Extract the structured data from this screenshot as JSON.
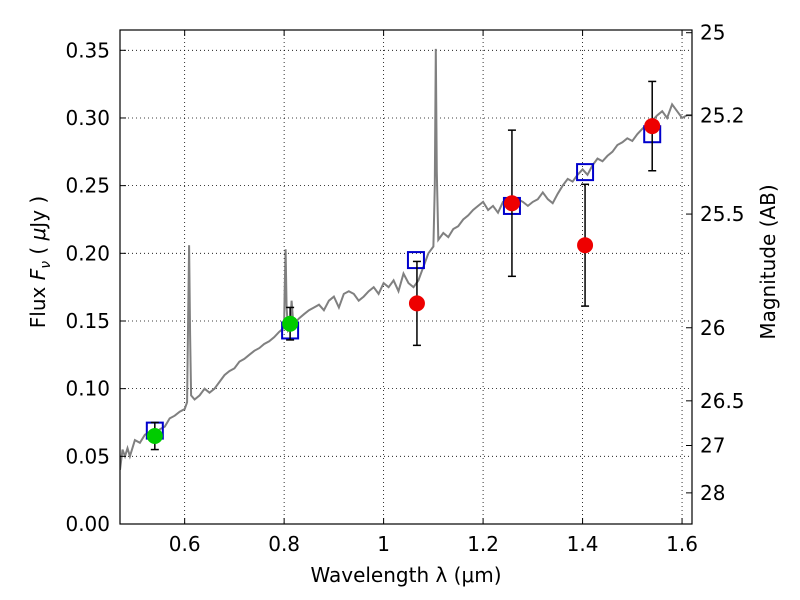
{
  "chart_data": {
    "type": "scatter",
    "xlabel": "Wavelength  λ (μm)",
    "ylabel": "Flux  F_ν  ( μJy )",
    "ylabel_parts": [
      "Flux  ",
      "F",
      "ν",
      "  (  ",
      "μ",
      "Jy )"
    ],
    "right_ylabel": "Magnitude (AB)",
    "xlim": [
      0.47,
      1.62
    ],
    "ylim": [
      0.0,
      0.365
    ],
    "grid": true,
    "x_ticks": [
      {
        "value": 0.6,
        "label": "0.6"
      },
      {
        "value": 0.8,
        "label": "0.8"
      },
      {
        "value": 1.0,
        "label": "1"
      },
      {
        "value": 1.2,
        "label": "1.2"
      },
      {
        "value": 1.4,
        "label": "1.4"
      },
      {
        "value": 1.6,
        "label": "1.6"
      }
    ],
    "y_ticks": [
      {
        "value": 0.0,
        "label": "0.00"
      },
      {
        "value": 0.05,
        "label": "0.05"
      },
      {
        "value": 0.1,
        "label": "0.10"
      },
      {
        "value": 0.15,
        "label": "0.15"
      },
      {
        "value": 0.2,
        "label": "0.20"
      },
      {
        "value": 0.25,
        "label": "0.25"
      },
      {
        "value": 0.3,
        "label": "0.30"
      },
      {
        "value": 0.35,
        "label": "0.35"
      }
    ],
    "right_ticks": [
      {
        "label": "25",
        "flux": 0.363
      },
      {
        "label": "25.2",
        "flux": 0.302
      },
      {
        "label": "25.5",
        "flux": 0.229
      },
      {
        "label": "26",
        "flux": 0.145
      },
      {
        "label": "26.5",
        "flux": 0.091
      },
      {
        "label": "27",
        "flux": 0.058
      },
      {
        "label": "28",
        "flux": 0.023
      }
    ],
    "series": [
      {
        "style": "line",
        "color": "#808080",
        "x": [
          0.47,
          0.475,
          0.48,
          0.485,
          0.49,
          0.5,
          0.51,
          0.52,
          0.53,
          0.54,
          0.55,
          0.56,
          0.57,
          0.58,
          0.59,
          0.6,
          0.605,
          0.607,
          0.609,
          0.611,
          0.613,
          0.62,
          0.63,
          0.64,
          0.65,
          0.66,
          0.67,
          0.68,
          0.69,
          0.7,
          0.71,
          0.72,
          0.73,
          0.74,
          0.75,
          0.76,
          0.77,
          0.78,
          0.79,
          0.8,
          0.801,
          0.803,
          0.805,
          0.808,
          0.812,
          0.815,
          0.818,
          0.82,
          0.83,
          0.84,
          0.85,
          0.86,
          0.87,
          0.88,
          0.89,
          0.9,
          0.91,
          0.92,
          0.93,
          0.94,
          0.95,
          0.96,
          0.97,
          0.98,
          0.99,
          1.0,
          1.01,
          1.02,
          1.03,
          1.04,
          1.05,
          1.06,
          1.07,
          1.08,
          1.09,
          1.1,
          1.103,
          1.105,
          1.107,
          1.11,
          1.12,
          1.13,
          1.14,
          1.15,
          1.16,
          1.17,
          1.18,
          1.19,
          1.2,
          1.21,
          1.22,
          1.23,
          1.24,
          1.25,
          1.26,
          1.27,
          1.28,
          1.29,
          1.3,
          1.31,
          1.32,
          1.33,
          1.34,
          1.35,
          1.36,
          1.37,
          1.38,
          1.39,
          1.4,
          1.41,
          1.42,
          1.43,
          1.44,
          1.45,
          1.46,
          1.47,
          1.48,
          1.49,
          1.5,
          1.51,
          1.52,
          1.53,
          1.54,
          1.55,
          1.56,
          1.57,
          1.58,
          1.59,
          1.6,
          1.61,
          1.62
        ],
        "y": [
          0.04,
          0.055,
          0.05,
          0.056,
          0.05,
          0.062,
          0.06,
          0.066,
          0.068,
          0.065,
          0.07,
          0.072,
          0.078,
          0.08,
          0.083,
          0.085,
          0.09,
          0.15,
          0.206,
          0.14,
          0.095,
          0.092,
          0.095,
          0.1,
          0.097,
          0.1,
          0.105,
          0.11,
          0.113,
          0.115,
          0.12,
          0.122,
          0.125,
          0.128,
          0.13,
          0.133,
          0.135,
          0.138,
          0.142,
          0.145,
          0.17,
          0.203,
          0.16,
          0.143,
          0.145,
          0.165,
          0.15,
          0.148,
          0.152,
          0.155,
          0.158,
          0.16,
          0.162,
          0.158,
          0.165,
          0.168,
          0.16,
          0.17,
          0.172,
          0.17,
          0.165,
          0.168,
          0.172,
          0.175,
          0.17,
          0.178,
          0.175,
          0.18,
          0.172,
          0.185,
          0.178,
          0.175,
          0.18,
          0.19,
          0.2,
          0.205,
          0.25,
          0.351,
          0.26,
          0.21,
          0.215,
          0.212,
          0.218,
          0.22,
          0.225,
          0.228,
          0.232,
          0.235,
          0.238,
          0.232,
          0.235,
          0.23,
          0.238,
          0.24,
          0.236,
          0.24,
          0.238,
          0.235,
          0.238,
          0.24,
          0.245,
          0.24,
          0.237,
          0.244,
          0.25,
          0.255,
          0.253,
          0.258,
          0.262,
          0.258,
          0.265,
          0.27,
          0.268,
          0.272,
          0.275,
          0.28,
          0.282,
          0.285,
          0.283,
          0.288,
          0.292,
          0.295,
          0.298,
          0.302,
          0.305,
          0.3,
          0.31,
          0.305,
          0.3,
          0.302,
          0.302
        ]
      },
      {
        "style": "open-square",
        "color": "#0000cc",
        "x": [
          0.54,
          0.812,
          1.065,
          1.258,
          1.405,
          1.54
        ],
        "y": [
          0.069,
          0.143,
          0.195,
          0.235,
          0.26,
          0.288
        ]
      },
      {
        "style": "filled-circle",
        "color": "#00cc00",
        "x": [
          0.54,
          0.812
        ],
        "y": [
          0.065,
          0.148
        ],
        "err": [
          0.01,
          0.012
        ]
      },
      {
        "style": "filled-circle",
        "color": "#ee0000",
        "x": [
          1.067,
          1.258,
          1.405,
          1.54
        ],
        "y": [
          0.163,
          0.237,
          0.206,
          0.294
        ],
        "err_low": [
          0.031,
          0.054,
          0.045,
          0.033
        ],
        "err_high": [
          0.031,
          0.054,
          0.045,
          0.033
        ]
      }
    ]
  }
}
